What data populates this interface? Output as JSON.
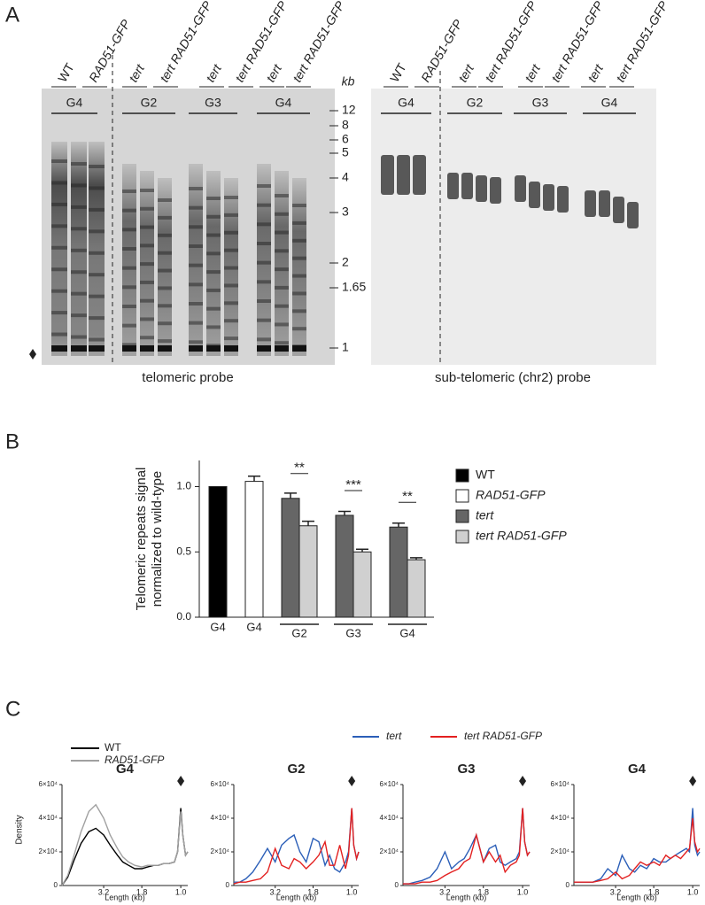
{
  "panel_a": {
    "label": "A",
    "size_unit": "kb",
    "size_markers": [
      12,
      8,
      6,
      5,
      4,
      3,
      2,
      1.65,
      1
    ],
    "gels": [
      {
        "lanes": [
          "WT",
          "RAD51-GFP",
          "tert",
          "tert RAD51-GFP",
          "tert",
          "tert RAD51-GFP",
          "tert",
          "tert RAD51-GFP"
        ],
        "generations": [
          "G4",
          "G2",
          "G3",
          "G4"
        ],
        "probe": "telomeric probe"
      },
      {
        "lanes": [
          "WT",
          "RAD51-GFP",
          "tert",
          "tert RAD51-GFP",
          "tert",
          "tert RAD51-GFP",
          "tert",
          "tert RAD51-GFP"
        ],
        "generations": [
          "G4",
          "G2",
          "G3",
          "G4"
        ],
        "probe": "sub-telomeric (chr2) probe"
      }
    ]
  },
  "panel_b_label": "B",
  "panel_c_label": "C",
  "chart_data": [
    {
      "type": "bar",
      "ylabel": [
        "Telomeric repeats signal",
        "normalized to wild-type"
      ],
      "categories": [
        "G4",
        "G4",
        "G2",
        "G3",
        "G4"
      ],
      "significance": [
        null,
        null,
        "**",
        "***",
        "**"
      ],
      "series": [
        {
          "name": "WT",
          "color": "#000000",
          "values": [
            1.0,
            null,
            null,
            null,
            null
          ],
          "errors": [
            null,
            null,
            null,
            null,
            null
          ]
        },
        {
          "name": "RAD51-GFP",
          "color": "#ffffff",
          "values": [
            null,
            1.04,
            null,
            null,
            null
          ],
          "errors": [
            null,
            0.04,
            null,
            null,
            null
          ]
        },
        {
          "name": "tert",
          "color": "#666666",
          "values": [
            null,
            null,
            0.91,
            0.78,
            0.69
          ],
          "errors": [
            null,
            null,
            0.04,
            0.03,
            0.03
          ]
        },
        {
          "name": "tert RAD51-GFP",
          "color": "#d0d0d0",
          "values": [
            null,
            null,
            0.7,
            0.5,
            0.44
          ],
          "errors": [
            null,
            null,
            0.035,
            0.02,
            0.015
          ]
        }
      ],
      "ylim": [
        0,
        1.2
      ],
      "yticks": [
        {
          "value": 0,
          "label": "0.0"
        },
        {
          "value": 0.5,
          "label": "0.5"
        },
        {
          "value": 1,
          "label": "1.0"
        }
      ],
      "legend": "right"
    },
    {
      "type": "line",
      "title": "G4",
      "xlabel": "Length (kb)",
      "ylabel": "Density",
      "xscale": "log",
      "x": [
        6,
        5.5,
        5,
        4.5,
        4,
        3.6,
        3.2,
        2.9,
        2.6,
        2.4,
        2.2,
        2.0,
        1.8,
        1.65,
        1.5,
        1.4,
        1.3,
        1.2,
        1.1,
        1.05,
        1.0,
        0.97,
        0.93,
        0.9
      ],
      "series": [
        {
          "name": "WT",
          "color": "#000000",
          "values": [
            0,
            5000,
            15000,
            25000,
            32000,
            34000,
            30000,
            24000,
            18000,
            14000,
            12000,
            10000,
            10000,
            11000,
            12000,
            12000,
            13000,
            13000,
            14000,
            20000,
            46000,
            30000,
            18000,
            20000
          ]
        },
        {
          "name": "RAD51-GFP",
          "color": "#a0a0a0",
          "values": [
            0,
            6000,
            18000,
            32000,
            44000,
            48000,
            40000,
            30000,
            22000,
            17000,
            14000,
            12000,
            11000,
            12000,
            12000,
            12000,
            13000,
            13000,
            14000,
            20000,
            44000,
            30000,
            18000,
            20000
          ]
        }
      ],
      "xlim": [
        6,
        0.9
      ],
      "xticks": [
        3.2,
        1.8,
        {
          "value": 1,
          "label": "1.0"
        }
      ],
      "ylim": [
        0,
        60000
      ],
      "yticks": [
        0,
        {
          "value": 20000,
          "label": "2×10⁴"
        },
        {
          "value": 40000,
          "label": "4×10⁴"
        },
        {
          "value": 60000,
          "label": "6×10⁴"
        }
      ]
    },
    {
      "type": "line",
      "title": "G2",
      "xlabel": "Length (kb)",
      "xscale": "log",
      "x": [
        6,
        5.5,
        5,
        4.5,
        4,
        3.6,
        3.2,
        2.9,
        2.6,
        2.4,
        2.2,
        2.0,
        1.8,
        1.65,
        1.5,
        1.4,
        1.3,
        1.2,
        1.1,
        1.05,
        1.0,
        0.97,
        0.93,
        0.9
      ],
      "series": [
        {
          "name": "tert",
          "color": "#2c5fb8",
          "values": [
            2000,
            2000,
            4000,
            8000,
            15000,
            22000,
            14000,
            24000,
            28000,
            30000,
            20000,
            14000,
            28000,
            26000,
            12000,
            18000,
            10000,
            8000,
            14000,
            20000,
            46000,
            24000,
            16000,
            20000
          ]
        },
        {
          "name": "tert RAD51-GFP",
          "color": "#e32020",
          "values": [
            1000,
            2000,
            2000,
            3000,
            4000,
            8000,
            22000,
            12000,
            10000,
            16000,
            14000,
            10000,
            14000,
            18000,
            26000,
            12000,
            12000,
            24000,
            10000,
            18000,
            46000,
            24000,
            16000,
            20000
          ]
        }
      ],
      "xlim": [
        6,
        0.9
      ],
      "xticks": [
        3.2,
        1.8,
        {
          "value": 1,
          "label": "1.0"
        }
      ],
      "ylim": [
        0,
        60000
      ],
      "yticks": [
        0,
        {
          "value": 20000,
          "label": "2×10⁴"
        },
        {
          "value": 40000,
          "label": "4×10⁴"
        },
        {
          "value": 60000,
          "label": "6×10⁴"
        }
      ]
    },
    {
      "type": "line",
      "title": "G3",
      "xlabel": "Length (kb)",
      "xscale": "log",
      "x": [
        6,
        5.5,
        5,
        4.5,
        4,
        3.6,
        3.2,
        2.9,
        2.6,
        2.4,
        2.2,
        2.0,
        1.8,
        1.65,
        1.5,
        1.4,
        1.3,
        1.2,
        1.1,
        1.05,
        1.0,
        0.97,
        0.93,
        0.9
      ],
      "series": [
        {
          "name": "tert",
          "color": "#2c5fb8",
          "values": [
            1000,
            1000,
            2000,
            3000,
            5000,
            10000,
            20000,
            10000,
            14000,
            16000,
            22000,
            30000,
            14000,
            22000,
            24000,
            14000,
            12000,
            14000,
            16000,
            20000,
            46000,
            26000,
            18000,
            20000
          ]
        },
        {
          "name": "tert RAD51-GFP",
          "color": "#e32020",
          "values": [
            1000,
            1000,
            1000,
            2000,
            2000,
            3000,
            6000,
            8000,
            10000,
            14000,
            16000,
            30000,
            14000,
            20000,
            14000,
            18000,
            8000,
            12000,
            14000,
            18000,
            46000,
            26000,
            18000,
            20000
          ]
        }
      ],
      "xlim": [
        6,
        0.9
      ],
      "xticks": [
        3.2,
        1.8,
        {
          "value": 1,
          "label": "1.0"
        }
      ],
      "ylim": [
        0,
        60000
      ],
      "yticks": [
        0,
        {
          "value": 20000,
          "label": "2×10⁴"
        },
        {
          "value": 40000,
          "label": "4×10⁴"
        },
        {
          "value": 60000,
          "label": "6×10⁴"
        }
      ]
    },
    {
      "type": "line",
      "title": "G4",
      "xlabel": "Length (kb)",
      "xscale": "log",
      "x": [
        6,
        5.5,
        5,
        4.5,
        4,
        3.6,
        3.2,
        2.9,
        2.6,
        2.4,
        2.2,
        2.0,
        1.8,
        1.65,
        1.5,
        1.4,
        1.3,
        1.2,
        1.1,
        1.05,
        1.0,
        0.97,
        0.93,
        0.9
      ],
      "series": [
        {
          "name": "tert",
          "color": "#2c5fb8",
          "values": [
            2000,
            2000,
            2000,
            2000,
            4000,
            10000,
            6000,
            18000,
            10000,
            8000,
            12000,
            10000,
            16000,
            14000,
            14000,
            16000,
            18000,
            20000,
            22000,
            20000,
            46000,
            24000,
            18000,
            20000
          ]
        },
        {
          "name": "tert RAD51-GFP",
          "color": "#e32020",
          "values": [
            2000,
            2000,
            2000,
            2000,
            3000,
            4000,
            8000,
            4000,
            6000,
            10000,
            14000,
            12000,
            14000,
            12000,
            18000,
            16000,
            18000,
            16000,
            20000,
            22000,
            40000,
            26000,
            20000,
            22000
          ]
        }
      ],
      "xlim": [
        6,
        0.9
      ],
      "xticks": [
        3.2,
        1.8,
        {
          "value": 1,
          "label": "1.0"
        }
      ],
      "ylim": [
        0,
        60000
      ],
      "yticks": [
        0,
        {
          "value": 20000,
          "label": "2×10⁴"
        },
        {
          "value": 40000,
          "label": "4×10⁴"
        },
        {
          "value": 60000,
          "label": "6×10⁴"
        }
      ]
    }
  ]
}
